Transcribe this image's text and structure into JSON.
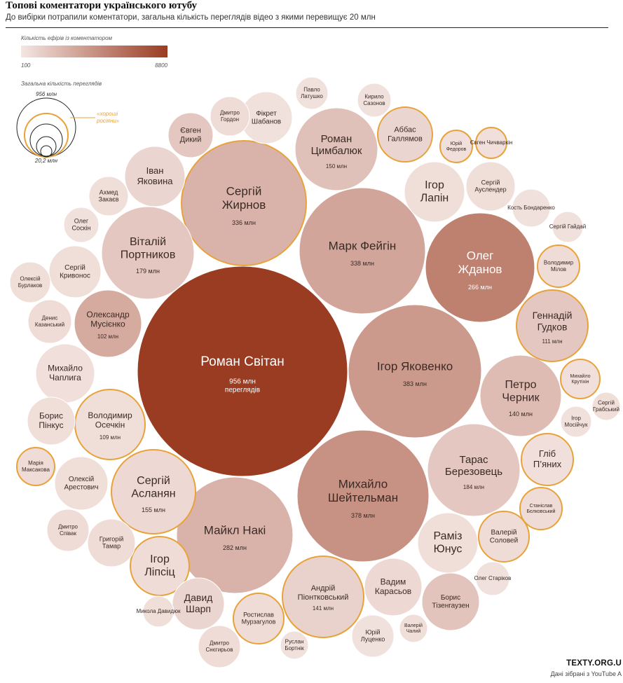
{
  "header": {
    "title": "Топові коментатори українського ютубу",
    "subtitle": "До вибірки потрапили коментатори, загальна кількість переглядів відео з якими перевищує 20 млн"
  },
  "legend": {
    "color_title": "Кількість ефірів із коментатором",
    "color_min": "100",
    "color_max": "8800",
    "size_title": "Загальна кількість переглядів",
    "size_max": "956 млн",
    "size_min": "20,2 млн",
    "highlight_label_line1": "«хороші",
    "highlight_label_line2": "росіяни»",
    "colors": {
      "light": "#f4e6e3",
      "dark": "#9a3c22",
      "highlight": "#e8a23a"
    }
  },
  "footer": {
    "brand": "TEXTY.ORG.U",
    "source": "Дані зібрані з YouTube A"
  },
  "chart_data": {
    "type": "bubble",
    "size_encodes": "Загальна кількість переглядів",
    "color_encodes": "Кількість ефірів із коментатором",
    "highlight_encodes": "«хороші росіяни»",
    "bubbles": [
      {
        "name": "Роман Світан",
        "views": "956 млн",
        "views_mln": 956,
        "extra": "переглядів",
        "shade": 1.0,
        "highlight": false
      },
      {
        "name": "Ігор Яковенко",
        "views": "383 млн",
        "views_mln": 383,
        "shade": 0.45,
        "highlight": false
      },
      {
        "name": "Михайло Шейтельман",
        "views": "378 млн",
        "views_mln": 378,
        "shade": 0.5,
        "highlight": false
      },
      {
        "name": "Марк Фейгін",
        "views": "338 млн",
        "views_mln": 338,
        "shade": 0.38,
        "highlight": false
      },
      {
        "name": "Сергій Жирнов",
        "views": "336 млн",
        "views_mln": 336,
        "shade": 0.3,
        "highlight": true
      },
      {
        "name": "Майкл Накі",
        "views": "282 млн",
        "views_mln": 282,
        "shade": 0.3,
        "highlight": false
      },
      {
        "name": "Олег Жданов",
        "views": "266 млн",
        "views_mln": 266,
        "shade": 0.6,
        "highlight": false
      },
      {
        "name": "Тарас Березовець",
        "views": "184 млн",
        "views_mln": 184,
        "shade": 0.18,
        "highlight": false
      },
      {
        "name": "Віталій Портников",
        "views": "179 млн",
        "views_mln": 179,
        "shade": 0.18,
        "highlight": false
      },
      {
        "name": "Сергій Асланян",
        "views": "155 млн",
        "views_mln": 155,
        "shade": 0.08,
        "highlight": true
      },
      {
        "name": "Роман Цимбалюк",
        "views": "150 млн",
        "views_mln": 150,
        "shade": 0.22,
        "highlight": false
      },
      {
        "name": "Андрій Піонтковський",
        "views": "141 млн",
        "views_mln": 141,
        "shade": 0.12,
        "highlight": true
      },
      {
        "name": "Петро Черник",
        "views": "140 млн",
        "views_mln": 140,
        "shade": 0.25,
        "highlight": false
      },
      {
        "name": "Геннадій Гудков",
        "views": "111 млн",
        "views_mln": 111,
        "shade": 0.18,
        "highlight": true
      },
      {
        "name": "Володимир Осечкін",
        "views": "109 млн",
        "views_mln": 109,
        "shade": 0.05,
        "highlight": true
      },
      {
        "name": "Олександр Мусієнко",
        "views": "102 млн",
        "views_mln": 102,
        "shade": 0.35,
        "highlight": false
      },
      {
        "name": "Ігор Лапін",
        "shade": 0.05,
        "highlight": false
      },
      {
        "name": "Іван Яковина",
        "shade": 0.1,
        "highlight": false
      },
      {
        "name": "Раміз Юнус",
        "shade": 0.05,
        "highlight": false
      },
      {
        "name": "Михайло Чаплига",
        "shade": 0.04,
        "highlight": false
      },
      {
        "name": "Аббас Галлямов",
        "shade": 0.1,
        "highlight": true
      },
      {
        "name": "Ігор Ліпсіц",
        "shade": 0.06,
        "highlight": true
      },
      {
        "name": "Вадим Карасьов",
        "shade": 0.08,
        "highlight": false
      },
      {
        "name": "Борис Тізенгаузен",
        "shade": 0.2,
        "highlight": false
      },
      {
        "name": "Давид Шарп",
        "shade": 0.1,
        "highlight": false
      },
      {
        "name": "Гліб П'яних",
        "shade": 0.04,
        "highlight": true
      },
      {
        "name": "Фікрет Шабанов",
        "shade": 0.03,
        "highlight": false
      },
      {
        "name": "Сергій Кривонос",
        "shade": 0.05,
        "highlight": false
      },
      {
        "name": "Олексій Арестович",
        "shade": 0.05,
        "highlight": false
      },
      {
        "name": "Валерій Соловей",
        "shade": 0.06,
        "highlight": true
      },
      {
        "name": "Ростислав Мурзагулов",
        "shade": 0.06,
        "highlight": true
      },
      {
        "name": "Борис Пінкус",
        "shade": 0.05,
        "highlight": false
      },
      {
        "name": "Сергій Ауслендер",
        "shade": 0.05,
        "highlight": false
      },
      {
        "name": "Григорій Тамар",
        "shade": 0.06,
        "highlight": false
      },
      {
        "name": "Євген Дикий",
        "shade": 0.18,
        "highlight": false
      },
      {
        "name": "Юрій Луценко",
        "shade": 0.03,
        "highlight": false
      },
      {
        "name": "Дмитро Снєгирьов",
        "shade": 0.06,
        "highlight": false
      },
      {
        "name": "Денис Казанський",
        "shade": 0.06,
        "highlight": false
      },
      {
        "name": "Кирило Сазонов",
        "shade": 0.03,
        "highlight": false
      },
      {
        "name": "Дмитро Гордон",
        "shade": 0.06,
        "highlight": false
      },
      {
        "name": "Олексій Бурлаков",
        "shade": 0.05,
        "highlight": false
      },
      {
        "name": "Олег Стариков",
        "shade": 0.03,
        "highlight": false
      },
      {
        "name": "Ахмед Закаєв",
        "shade": 0.05,
        "highlight": false
      },
      {
        "name": "Дмитро Співак",
        "shade": 0.06,
        "highlight": false
      },
      {
        "name": "Павло Латушко",
        "shade": 0.03,
        "highlight": false
      },
      {
        "name": "Олег Соскін",
        "shade": 0.03,
        "highlight": false
      },
      {
        "name": "Кость Бондаренко",
        "shade": 0.03,
        "highlight": false
      },
      {
        "name": "Станіслав Бєлковський",
        "shade": 0.06,
        "highlight": true
      },
      {
        "name": "Марія Максакова",
        "shade": 0.06,
        "highlight": true
      },
      {
        "name": "Володимир Мілов",
        "shade": 0.06,
        "highlight": true
      },
      {
        "name": "Валерій Чалий",
        "shade": 0.05,
        "highlight": false
      },
      {
        "name": "Сергій Гайдай",
        "shade": 0.03,
        "highlight": false
      },
      {
        "name": "Ігор Мосійчук",
        "shade": 0.03,
        "highlight": false
      },
      {
        "name": "Руслан Бортнік",
        "shade": 0.03,
        "highlight": false
      },
      {
        "name": "Микола Давидюк",
        "shade": 0.05,
        "highlight": false
      },
      {
        "name": "Михайло Крутіхін",
        "shade": 0.04,
        "highlight": true
      },
      {
        "name": "Сергій Грабський",
        "shade": 0.05,
        "highlight": false
      },
      {
        "name": "Юрій Федоров",
        "shade": 0.04,
        "highlight": true
      },
      {
        "name": "Євген Чичваркін",
        "shade": 0.04,
        "highlight": true
      }
    ]
  }
}
